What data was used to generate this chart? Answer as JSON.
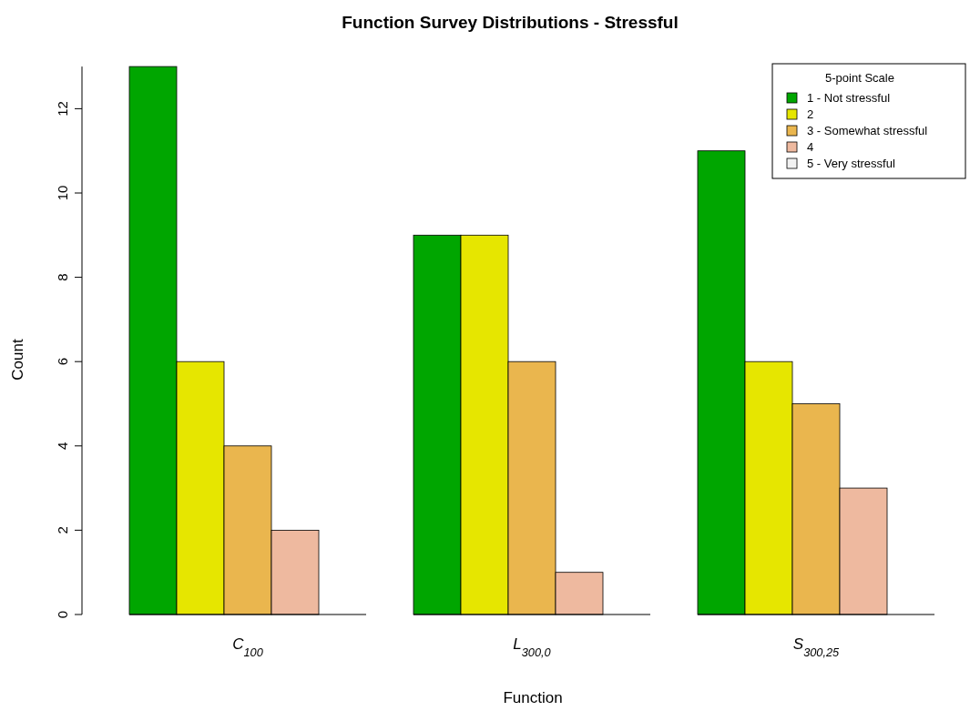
{
  "chart_data": {
    "type": "bar",
    "title": "Function Survey Distributions - Stressful",
    "xlabel": "Function",
    "ylabel": "Count",
    "legend_title": "5-point Scale",
    "legend": "top right",
    "categories": [
      "C$_{100}$",
      "L$_{300,0}$",
      "S$_{300,25}$"
    ],
    "series": [
      {
        "name": "1 - Not stressful",
        "color": "#00a600",
        "values": [
          13,
          9,
          11
        ]
      },
      {
        "name": "2",
        "color": "#e6e600",
        "values": [
          6,
          9,
          6
        ]
      },
      {
        "name": "3 - Somewhat stressful",
        "color": "#eab64e",
        "values": [
          4,
          6,
          5
        ]
      },
      {
        "name": "4",
        "color": "#eeb99f",
        "values": [
          2,
          1,
          3
        ]
      },
      {
        "name": "5 - Very stressful",
        "color": "#f2f2f2",
        "values": [
          0,
          0,
          0
        ]
      }
    ],
    "ylim": [
      0,
      13
    ],
    "yticks": [
      0,
      2,
      4,
      6,
      8,
      10,
      12
    ]
  }
}
